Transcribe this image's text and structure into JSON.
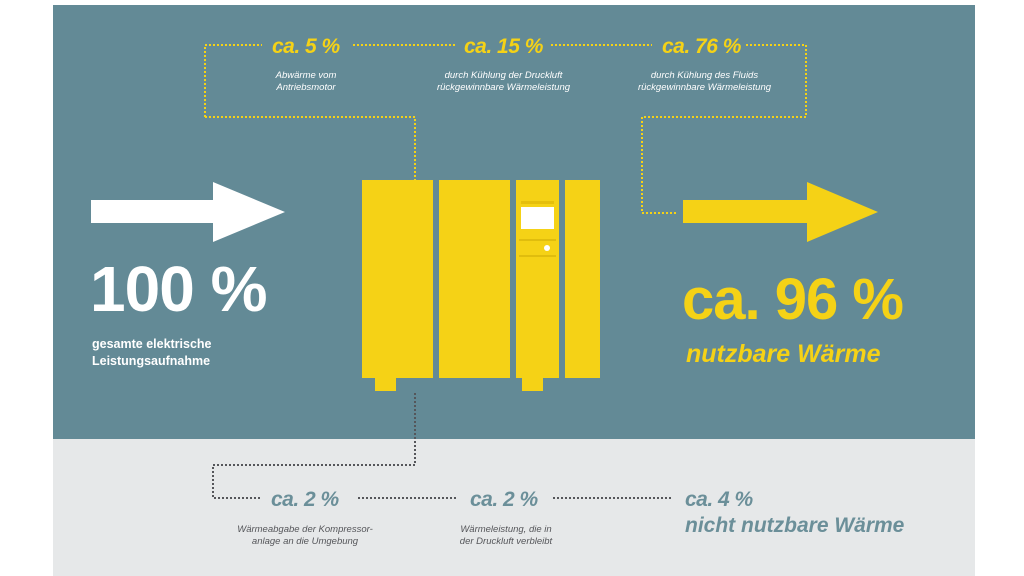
{
  "input": {
    "percent": "100 %",
    "label_line1": "gesamte elektrische",
    "label_line2": "Leistungsaufnahme"
  },
  "output": {
    "percent": "ca. 96 %",
    "label": "nutzbare Wärme"
  },
  "recoverable": [
    {
      "percent": "ca. 5 %",
      "line1": "Abwärme vom",
      "line2": "Antriebsmotor"
    },
    {
      "percent": "ca. 15 %",
      "line1": "durch Kühlung der  Druckluft",
      "line2": "rückgewinnbare Wärmeleistung"
    },
    {
      "percent": "ca. 76 %",
      "line1": "durch Kühlung des Fluids",
      "line2": "rückgewinnbare Wärmeleistung"
    }
  ],
  "losses": [
    {
      "percent": "ca. 2 %",
      "line1": "Wärmeabgabe der Kompressor-",
      "line2": "anlage an die Umgebung"
    },
    {
      "percent": "ca. 2 %",
      "line1": "Wärmeleistung, die in",
      "line2": "der Druckluft verbleibt"
    }
  ],
  "loss_total": {
    "percent": "ca. 4 %",
    "label": "nicht nutzbare Wärme"
  },
  "colors": {
    "top_panel": "#638a96",
    "bottom_panel": "#e6e8e9",
    "yellow": "#f5d216",
    "white": "#ffffff",
    "grey_blue": "#6b8f99",
    "dotted_line_dark": "#55565a"
  },
  "icons": {
    "input_arrow": "arrow-right-white-icon",
    "output_arrow": "arrow-right-yellow-icon",
    "compressor": "compressor-unit-icon"
  }
}
